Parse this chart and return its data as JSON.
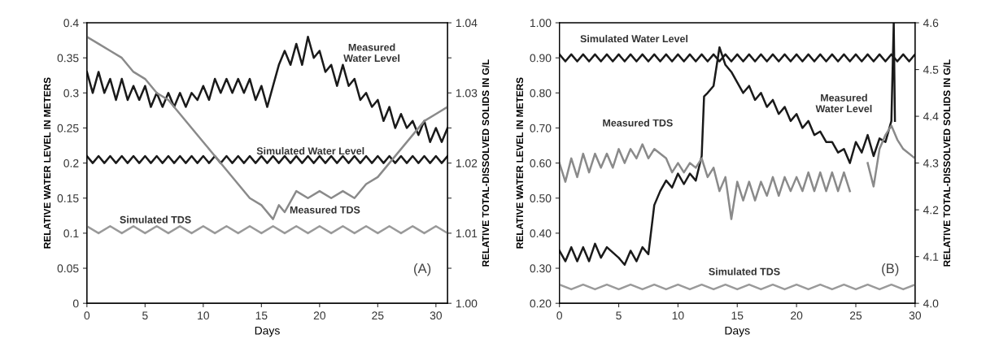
{
  "chart_data": [
    {
      "type": "line",
      "xlabel": "Days",
      "ylabel": "RELATIVE WATER LEVEL IN METERS",
      "y2label": "RELATIVE TOTAL-DISSOLVED SOLIDS IN G/L",
      "xlim": [
        0,
        31
      ],
      "xticks": [
        0,
        5,
        10,
        15,
        20,
        25,
        30
      ],
      "ylim": [
        0,
        0.4
      ],
      "yticks": [
        0,
        0.05,
        0.1,
        0.15,
        0.2,
        0.25,
        0.3,
        0.35,
        0.4
      ],
      "y2lim": [
        1.0,
        1.04
      ],
      "y2ticks": [
        {
          "value": 1.0,
          "label": "1.00"
        },
        {
          "value": 1.005,
          "label": null
        },
        {
          "value": 1.01,
          "label": "1.01"
        },
        {
          "value": 1.015,
          "label": null
        },
        {
          "value": 1.02,
          "label": "1.02"
        },
        {
          "value": 1.025,
          "label": null
        },
        {
          "value": 1.03,
          "label": "1.03"
        },
        {
          "value": 1.035,
          "label": null
        },
        {
          "value": 1.04,
          "label": "1.04"
        }
      ],
      "grid": false,
      "legend": false,
      "series": [
        {
          "name": "Measured\nWater Level",
          "color": "#1a1a1a",
          "x": [
            0,
            0.5,
            1,
            1.5,
            2,
            2.5,
            3,
            3.5,
            4,
            4.5,
            5,
            5.5,
            6,
            6.5,
            7,
            7.5,
            8,
            8.5,
            9,
            9.5,
            10,
            10.5,
            11,
            11.5,
            12,
            12.5,
            13,
            13.5,
            14,
            14.5,
            15,
            15.5,
            16,
            16.5,
            17,
            17.5,
            18,
            18.5,
            19,
            19.5,
            20,
            20.5,
            21,
            21.5,
            22,
            22.5,
            23,
            23.5,
            24,
            24.5,
            25,
            25.5,
            26,
            26.5,
            27,
            27.5,
            28,
            28.5,
            29,
            29.5,
            30,
            30.5,
            31
          ],
          "values": [
            0.33,
            0.3,
            0.33,
            0.3,
            0.32,
            0.29,
            0.32,
            0.29,
            0.31,
            0.29,
            0.31,
            0.28,
            0.3,
            0.28,
            0.3,
            0.28,
            0.3,
            0.28,
            0.3,
            0.29,
            0.31,
            0.29,
            0.32,
            0.3,
            0.32,
            0.3,
            0.32,
            0.3,
            0.32,
            0.29,
            0.31,
            0.28,
            0.31,
            0.34,
            0.36,
            0.34,
            0.37,
            0.34,
            0.38,
            0.35,
            0.36,
            0.33,
            0.34,
            0.31,
            0.34,
            0.31,
            0.32,
            0.29,
            0.3,
            0.28,
            0.29,
            0.26,
            0.28,
            0.25,
            0.27,
            0.25,
            0.26,
            0.24,
            0.26,
            0.23,
            0.25,
            0.23,
            0.25
          ]
        },
        {
          "name": "Simulated Water Level",
          "color": "#1a1a1a",
          "x": [
            0,
            0.5,
            1,
            1.5,
            2,
            2.5,
            3,
            3.5,
            4,
            4.5,
            5,
            5.5,
            6,
            6.5,
            7,
            7.5,
            8,
            8.5,
            9,
            9.5,
            10,
            10.5,
            11,
            11.5,
            12,
            12.5,
            13,
            13.5,
            14,
            14.5,
            15,
            15.5,
            16,
            16.5,
            17,
            17.5,
            18,
            18.5,
            19,
            19.5,
            20,
            20.5,
            21,
            21.5,
            22,
            22.5,
            23,
            23.5,
            24,
            24.5,
            25,
            25.5,
            26,
            26.5,
            27,
            27.5,
            28,
            28.5,
            29,
            29.5,
            30,
            30.5,
            31
          ],
          "values": [
            0.21,
            0.2,
            0.21,
            0.2,
            0.21,
            0.2,
            0.21,
            0.2,
            0.21,
            0.2,
            0.21,
            0.2,
            0.21,
            0.2,
            0.21,
            0.2,
            0.21,
            0.2,
            0.21,
            0.2,
            0.21,
            0.2,
            0.21,
            0.2,
            0.21,
            0.2,
            0.21,
            0.2,
            0.21,
            0.2,
            0.21,
            0.2,
            0.21,
            0.2,
            0.21,
            0.2,
            0.21,
            0.2,
            0.21,
            0.2,
            0.21,
            0.2,
            0.21,
            0.2,
            0.21,
            0.2,
            0.21,
            0.2,
            0.21,
            0.2,
            0.21,
            0.2,
            0.21,
            0.2,
            0.21,
            0.2,
            0.21,
            0.2,
            0.21,
            0.2,
            0.21,
            0.2,
            0.21
          ]
        },
        {
          "name": "Measured TDS",
          "color": "#8a8a8a",
          "axis": "y2",
          "x": [
            0,
            1,
            2,
            3,
            4,
            5,
            6,
            7,
            8,
            9,
            10,
            11,
            12,
            13,
            14,
            15,
            16,
            16.5,
            17,
            18,
            19,
            20,
            21,
            22,
            23,
            24,
            25,
            26,
            27,
            28,
            29,
            30,
            31
          ],
          "values": [
            1.038,
            1.037,
            1.036,
            1.035,
            1.033,
            1.032,
            1.03,
            1.029,
            1.027,
            1.025,
            1.023,
            1.021,
            1.019,
            1.017,
            1.015,
            1.014,
            1.012,
            1.014,
            1.013,
            1.016,
            1.015,
            1.016,
            1.015,
            1.016,
            1.015,
            1.017,
            1.018,
            1.02,
            1.022,
            1.024,
            1.026,
            1.027,
            1.028
          ]
        },
        {
          "name": "Simulated TDS",
          "color": "#9a9a9a",
          "axis": "y2",
          "x": [
            0,
            1,
            2,
            3,
            4,
            5,
            6,
            7,
            8,
            9,
            10,
            11,
            12,
            13,
            14,
            15,
            16,
            17,
            18,
            19,
            20,
            21,
            22,
            23,
            24,
            25,
            26,
            27,
            28,
            29,
            30,
            31
          ],
          "values": [
            1.011,
            1.01,
            1.011,
            1.01,
            1.011,
            1.01,
            1.011,
            1.01,
            1.011,
            1.01,
            1.011,
            1.01,
            1.011,
            1.01,
            1.011,
            1.01,
            1.011,
            1.01,
            1.011,
            1.01,
            1.011,
            1.01,
            1.011,
            1.01,
            1.011,
            1.01,
            1.011,
            1.01,
            1.011,
            1.01,
            1.011,
            1.01
          ]
        }
      ],
      "annotations": [
        "(A)"
      ]
    },
    {
      "type": "line",
      "xlabel": "Days",
      "ylabel": "RELATIVE WATER LEVEL IN METERS",
      "y2label": "RELATIVE TOTAL-DISSOLVED SOLIDS IN G/L",
      "xlim": [
        0,
        30
      ],
      "xticks": [
        0,
        5,
        10,
        15,
        20,
        25,
        30
      ],
      "ylim": [
        0.2,
        1.0
      ],
      "yticks": [
        {
          "value": 0.2,
          "label": "0.20"
        },
        {
          "value": 0.3,
          "label": "0.30"
        },
        {
          "value": 0.4,
          "label": "0.40"
        },
        {
          "value": 0.5,
          "label": "0.50"
        },
        {
          "value": 0.6,
          "label": "0.60"
        },
        {
          "value": 0.7,
          "label": "0.70"
        },
        {
          "value": 0.8,
          "label": "0.80"
        },
        {
          "value": 0.9,
          "label": "0.90"
        },
        {
          "value": 1.0,
          "label": "1.00"
        }
      ],
      "y2lim": [
        4.0,
        4.6
      ],
      "y2ticks": [
        {
          "value": 4.0,
          "label": "4.0"
        },
        {
          "value": 4.1,
          "label": "4.1"
        },
        {
          "value": 4.2,
          "label": "4.2"
        },
        {
          "value": 4.3,
          "label": "4.3"
        },
        {
          "value": 4.4,
          "label": "4.4"
        },
        {
          "value": 4.5,
          "label": "4.5"
        },
        {
          "value": 4.6,
          "label": "4.6"
        }
      ],
      "grid": false,
      "legend": false,
      "series": [
        {
          "name": "Simulated Water Level",
          "color": "#1a1a1a",
          "x": [
            0,
            0.5,
            1,
            1.5,
            2,
            2.5,
            3,
            3.5,
            4,
            4.5,
            5,
            5.5,
            6,
            6.5,
            7,
            7.5,
            8,
            8.5,
            9,
            9.5,
            10,
            10.5,
            11,
            11.5,
            12,
            12.5,
            13,
            13.5,
            14,
            14.5,
            15,
            15.5,
            16,
            16.5,
            17,
            17.5,
            18,
            18.5,
            19,
            19.5,
            20,
            20.5,
            21,
            21.5,
            22,
            22.5,
            23,
            23.5,
            24,
            24.5,
            25,
            25.5,
            26,
            26.5,
            27,
            27.5,
            28,
            28.5,
            29,
            29.5,
            30
          ],
          "values": [
            0.91,
            0.89,
            0.91,
            0.89,
            0.91,
            0.89,
            0.91,
            0.89,
            0.91,
            0.89,
            0.91,
            0.89,
            0.91,
            0.89,
            0.91,
            0.89,
            0.91,
            0.89,
            0.91,
            0.89,
            0.91,
            0.89,
            0.91,
            0.89,
            0.91,
            0.89,
            0.91,
            0.89,
            0.91,
            0.89,
            0.91,
            0.89,
            0.91,
            0.89,
            0.91,
            0.89,
            0.91,
            0.89,
            0.91,
            0.89,
            0.91,
            0.89,
            0.91,
            0.89,
            0.91,
            0.89,
            0.91,
            0.89,
            0.91,
            0.89,
            0.91,
            0.89,
            0.91,
            0.89,
            0.91,
            0.89,
            0.91,
            0.89,
            0.91,
            0.89,
            0.91
          ]
        },
        {
          "name": "Measured\nWater Level",
          "color": "#1a1a1a",
          "x": [
            0,
            0.5,
            1,
            1.5,
            2,
            2.5,
            3,
            3.5,
            4,
            5,
            5.5,
            6,
            6.5,
            7,
            7.5,
            8,
            8.5,
            9,
            9.5,
            10,
            10.5,
            11,
            11.5,
            12,
            12.2,
            12.5,
            13,
            13.5,
            14,
            14.5,
            15,
            15.5,
            16,
            16.5,
            17,
            17.5,
            18,
            18.5,
            19,
            19.5,
            20,
            20.5,
            21,
            21.5,
            22,
            22.5,
            23,
            23.5,
            24,
            24.5,
            25,
            25.5,
            26,
            26.5,
            27,
            27.5,
            28,
            28.2,
            28.3
          ],
          "values": [
            0.35,
            0.32,
            0.36,
            0.32,
            0.36,
            0.32,
            0.37,
            0.33,
            0.36,
            0.33,
            0.31,
            0.35,
            0.32,
            0.36,
            0.34,
            0.48,
            0.52,
            0.55,
            0.53,
            0.57,
            0.54,
            0.57,
            0.55,
            0.62,
            0.79,
            0.8,
            0.82,
            0.93,
            0.88,
            0.86,
            0.83,
            0.8,
            0.82,
            0.78,
            0.8,
            0.76,
            0.78,
            0.74,
            0.76,
            0.72,
            0.74,
            0.7,
            0.72,
            0.68,
            0.69,
            0.66,
            0.66,
            0.63,
            0.64,
            0.6,
            0.66,
            0.63,
            0.68,
            0.62,
            0.67,
            0.66,
            0.72,
            1.0,
            0.72
          ]
        },
        {
          "name": "Measured TDS",
          "color": "#8a8a8a",
          "axis": "y2",
          "x": [
            0,
            0.5,
            1,
            1.5,
            2,
            2.5,
            3,
            3.5,
            4,
            4.5,
            5,
            5.5,
            6,
            6.5,
            7,
            7.5,
            8,
            8.5,
            9,
            9.5,
            10,
            10.5,
            11,
            11.5,
            12,
            12.5,
            13,
            13.5,
            14,
            14.5,
            15,
            15.5,
            16,
            16.5,
            17,
            17.5,
            18,
            18.5,
            19,
            19.5,
            20,
            20.5,
            21,
            21.5,
            22,
            22.5,
            23,
            23.5,
            24,
            24.5,
            25,
            26,
            26.5,
            27,
            27.5,
            28,
            28.5,
            29,
            30
          ],
          "values": [
            4.3,
            4.26,
            4.31,
            4.27,
            4.32,
            4.28,
            4.32,
            4.29,
            4.32,
            4.29,
            4.33,
            4.3,
            4.33,
            4.31,
            4.34,
            4.31,
            4.33,
            4.32,
            4.31,
            4.28,
            4.3,
            4.28,
            4.3,
            4.29,
            4.31,
            4.27,
            4.29,
            4.24,
            4.27,
            4.18,
            4.26,
            4.22,
            4.26,
            4.22,
            4.26,
            4.23,
            4.27,
            4.23,
            4.27,
            4.24,
            4.27,
            4.24,
            4.28,
            4.24,
            4.28,
            4.24,
            4.28,
            4.24,
            4.28,
            4.24,
            null,
            4.3,
            4.25,
            4.33,
            4.36,
            4.38,
            4.35,
            4.33,
            4.31
          ]
        },
        {
          "name": "Simulated TDS",
          "color": "#9a9a9a",
          "axis": "y2",
          "x": [
            0,
            1,
            2,
            3,
            4,
            5,
            6,
            7,
            8,
            9,
            10,
            11,
            12,
            13,
            14,
            15,
            16,
            17,
            18,
            19,
            20,
            21,
            22,
            23,
            24,
            25,
            26,
            27,
            28,
            29,
            30
          ],
          "values": [
            4.04,
            4.03,
            4.04,
            4.03,
            4.04,
            4.03,
            4.04,
            4.03,
            4.04,
            4.03,
            4.04,
            4.03,
            4.04,
            4.03,
            4.04,
            4.03,
            4.04,
            4.03,
            4.04,
            4.03,
            4.04,
            4.03,
            4.04,
            4.03,
            4.04,
            4.03,
            4.04,
            4.03,
            4.04,
            4.03,
            4.04
          ]
        }
      ],
      "annotations": [
        "(B)"
      ]
    }
  ]
}
